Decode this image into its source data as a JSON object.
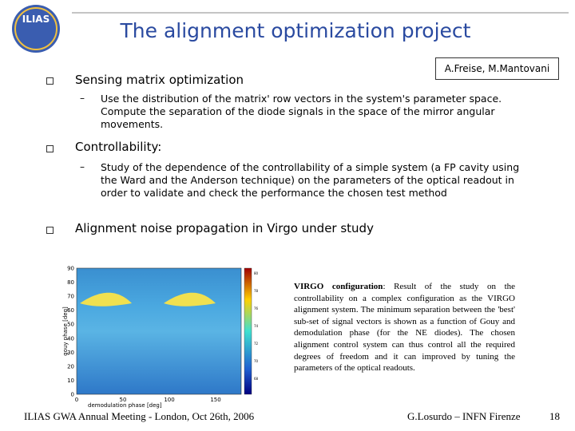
{
  "header": {
    "logo": "ILIAS",
    "title": "The alignment optimization project",
    "authors": "A.Freise, M.Mantovani"
  },
  "items": [
    {
      "text": "Sensing matrix optimization",
      "sub": "Use the distribution of the matrix' row vectors in the system's parameter space. Compute the separation of the diode signals in the space of the mirror angular movements."
    },
    {
      "text": "Controllability:",
      "sub": "Study of the dependence of the controllability of a simple system (a FP cavity using the Ward and the Anderson technique) on the parameters of the optical readout in order to validate and check the performance the chosen test method"
    },
    {
      "text": "Alignment noise propagation in Virgo under study"
    }
  ],
  "plot": {
    "ylabel": "gouy phase [deg]",
    "xlabel": "demodulation phase [deg]",
    "yticks": [
      "0",
      "10",
      "20",
      "30",
      "40",
      "50",
      "60",
      "70",
      "80",
      "90"
    ],
    "xticks": [
      "0",
      "50",
      "100",
      "150"
    ],
    "cticks": [
      "80",
      "78",
      "76",
      "74",
      "72",
      "70",
      "68"
    ]
  },
  "caption": {
    "label": "VIRGO configuration",
    "text": ": Result of the study on the controllability on a complex configuration as the VIRGO alignment system. The minimum separation between the 'best' sub-set of signal vectors is shown as a function of Gouy and demodulation phase (for the NE diodes). The chosen alignment control system can thus control all the required degrees of freedom and it can improved by tuning the parameters of the optical readouts."
  },
  "footer": {
    "left": "ILIAS GWA Annual Meeting - London, Oct 26th, 2006",
    "right": "G.Losurdo – INFN Firenze",
    "page": "18"
  }
}
